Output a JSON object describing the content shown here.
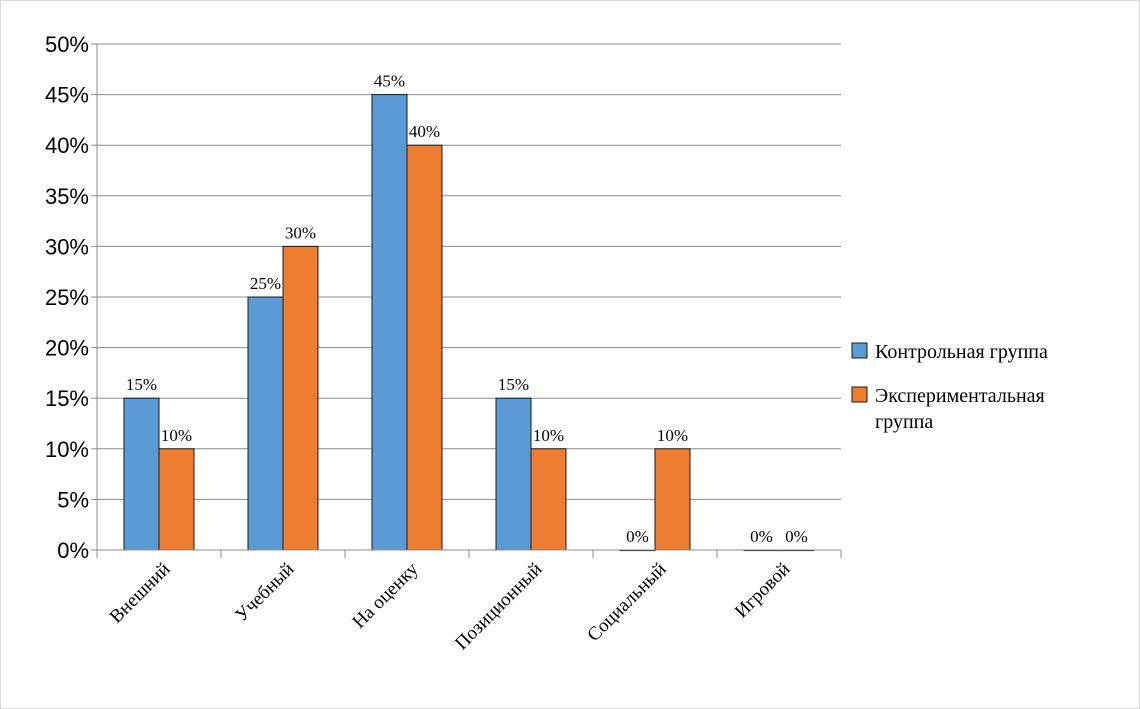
{
  "chart_data": {
    "type": "bar",
    "categories": [
      "Внешний",
      "Учебный",
      "На оценку",
      "Позиционный",
      "Социальный",
      "Игровой"
    ],
    "series": [
      {
        "name": "Контрольная группа",
        "values": [
          15,
          25,
          45,
          15,
          0,
          0
        ],
        "color": "#5b9bd5"
      },
      {
        "name": "Экспериментальная группа",
        "values": [
          10,
          30,
          40,
          10,
          10,
          0
        ],
        "color": "#ed7d31"
      }
    ],
    "value_suffix": "%",
    "ylim": [
      0,
      50
    ],
    "ytick_step": 5,
    "grid": true,
    "legend_position": "right"
  }
}
